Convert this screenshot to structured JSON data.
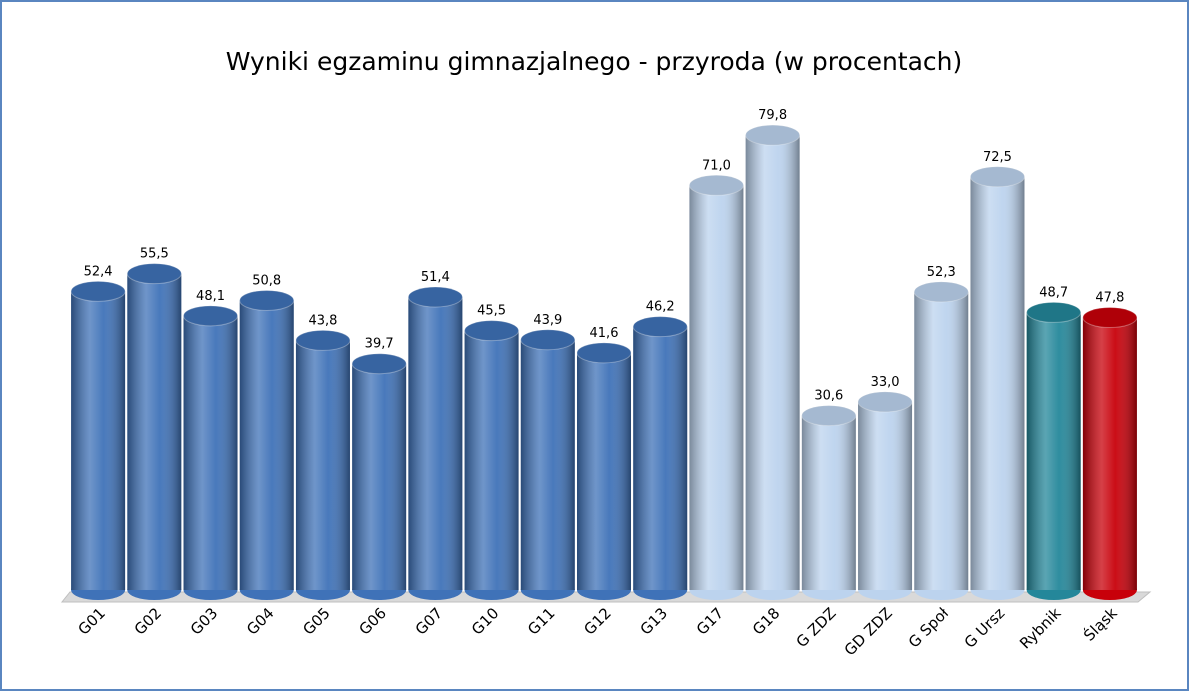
{
  "chart_data": {
    "type": "bar",
    "title": "Wyniki egzaminu gimnazjalnego - przyroda (w procentach)",
    "categories": [
      "G01",
      "G02",
      "G03",
      "G04",
      "G05",
      "G06",
      "G07",
      "G10",
      "G11",
      "G12",
      "G13",
      "G17",
      "G18",
      "G ZDZ",
      "GD ZDZ",
      "G Społ",
      "G Ursz",
      "Rybnik",
      "Śląsk"
    ],
    "values": [
      52.4,
      55.5,
      48.1,
      50.8,
      43.8,
      39.7,
      51.4,
      45.5,
      43.9,
      41.6,
      46.2,
      71.0,
      79.8,
      30.6,
      33.0,
      52.3,
      72.5,
      48.7,
      47.8
    ],
    "value_labels": [
      "52,4",
      "55,5",
      "48,1",
      "50,8",
      "43,8",
      "39,7",
      "51,4",
      "45,5",
      "43,9",
      "41,6",
      "46,2",
      "71,0",
      "79,8",
      "30,6",
      "33,0",
      "52,3",
      "72,5",
      "48,7",
      "47,8"
    ],
    "colors": [
      "#3f72b8",
      "#3f72b8",
      "#3f72b8",
      "#3f72b8",
      "#3f72b8",
      "#3f72b8",
      "#3f72b8",
      "#3f72b8",
      "#3f72b8",
      "#3f72b8",
      "#3f72b8",
      "#bcd3ee",
      "#bcd3ee",
      "#bcd3ee",
      "#bcd3ee",
      "#bcd3ee",
      "#bcd3ee",
      "#24879a",
      "#c8000a"
    ],
    "ylim": [
      0,
      80
    ]
  }
}
